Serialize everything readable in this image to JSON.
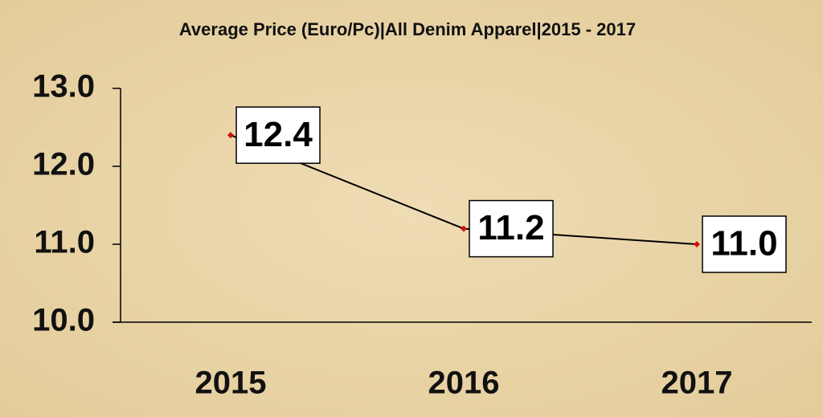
{
  "chart_data": {
    "type": "line",
    "title": "Average Price (Euro/Pc)|All Denim Apparel|2015 - 2017",
    "categories": [
      "2015",
      "2016",
      "2017"
    ],
    "series": [
      {
        "values": [
          12.4,
          11.2,
          11.0
        ],
        "value_labels": [
          "12.4",
          "11.2",
          "11.0"
        ],
        "color": "#000000",
        "marker_color": "#d01010"
      }
    ],
    "ylim": [
      10,
      13
    ],
    "yticks": [
      {
        "value": 10,
        "label": "10.0"
      },
      {
        "value": 11,
        "label": "11.0"
      },
      {
        "value": 12,
        "label": "12.0"
      },
      {
        "value": 13,
        "label": "13.0"
      }
    ],
    "grid": false
  }
}
